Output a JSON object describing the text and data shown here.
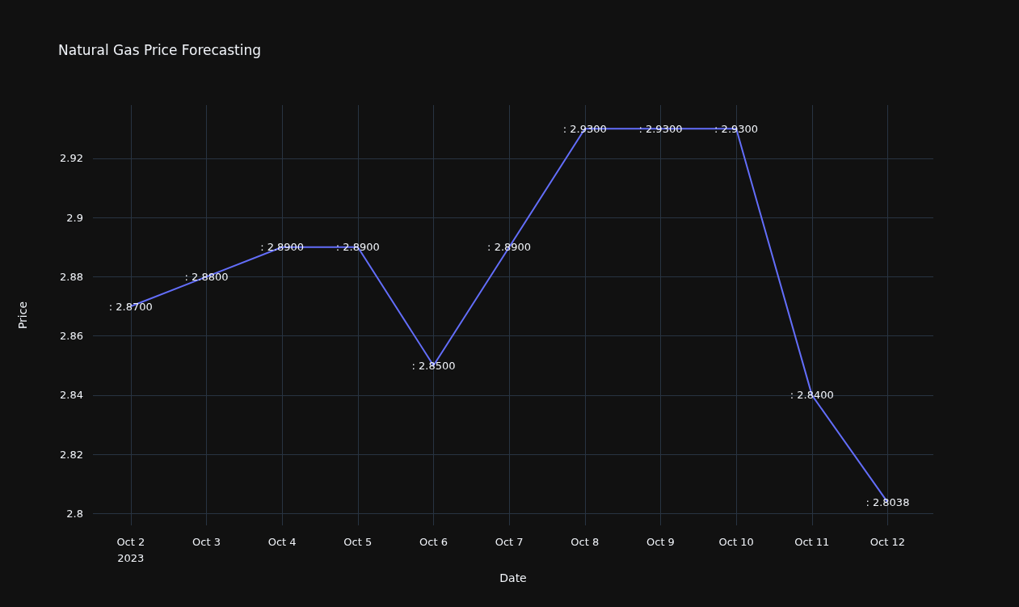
{
  "chart_data": {
    "type": "line",
    "title": "Natural Gas Price Forecasting",
    "xlabel": "Date",
    "ylabel": "Price",
    "x": [
      "2023-10-02",
      "2023-10-03",
      "2023-10-04",
      "2023-10-05",
      "2023-10-06",
      "2023-10-07",
      "2023-10-08",
      "2023-10-09",
      "2023-10-10",
      "2023-10-11",
      "2023-10-12"
    ],
    "series": [
      {
        "color": "#636efa",
        "values": [
          2.87,
          2.88,
          2.89,
          2.89,
          2.85,
          2.89,
          2.93,
          2.93,
          2.93,
          2.84,
          2.8038
        ],
        "value_labels": [
          ": 2.8700",
          ": 2.8800",
          ": 2.8900",
          ": 2.8900",
          ": 2.8500",
          ": 2.8900",
          ": 2.9300",
          ": 2.9300",
          ": 2.9300",
          ": 2.8400",
          ": 2.8038"
        ]
      }
    ],
    "xlim": [
      "2023-10-01T12:00",
      "2023-10-12T14:30"
    ],
    "xticks": [
      {
        "value": "2023-10-02",
        "label": "Oct 2\n2023"
      },
      {
        "value": "2023-10-03",
        "label": "Oct 3"
      },
      {
        "value": "2023-10-04",
        "label": "Oct 4"
      },
      {
        "value": "2023-10-05",
        "label": "Oct 5"
      },
      {
        "value": "2023-10-06",
        "label": "Oct 6"
      },
      {
        "value": "2023-10-07",
        "label": "Oct 7"
      },
      {
        "value": "2023-10-08",
        "label": "Oct 8"
      },
      {
        "value": "2023-10-09",
        "label": "Oct 9"
      },
      {
        "value": "2023-10-10",
        "label": "Oct 10"
      },
      {
        "value": "2023-10-11",
        "label": "Oct 11"
      },
      {
        "value": "2023-10-12",
        "label": "Oct 12"
      }
    ],
    "ylim": [
      2.796,
      2.938
    ],
    "yticks": [
      2.8,
      2.82,
      2.84,
      2.86,
      2.88,
      2.9,
      2.92
    ],
    "grid": true,
    "marker": "none",
    "line_style": "solid"
  }
}
